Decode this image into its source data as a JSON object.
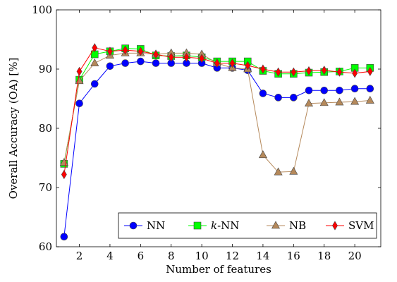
{
  "chart_data": {
    "type": "line",
    "title": "",
    "xlabel": "Number of features",
    "ylabel": "Overall Accuracy (OA) [%]",
    "xlim": [
      0.5,
      21.7
    ],
    "ylim": [
      60,
      100
    ],
    "x_ticks": [
      2,
      4,
      6,
      8,
      10,
      12,
      14,
      16,
      18,
      20
    ],
    "x_tick_labels": [
      "2",
      "4",
      "6",
      "8",
      "10",
      "12",
      "14",
      "16",
      "18",
      "20"
    ],
    "y_ticks": [
      60,
      70,
      80,
      90,
      100
    ],
    "y_tick_labels": [
      "60",
      "70",
      "80",
      "90",
      "100"
    ],
    "grid": false,
    "legend_position": "bottom-right",
    "x": [
      1,
      2,
      3,
      4,
      5,
      6,
      7,
      8,
      9,
      10,
      11,
      12,
      13,
      14,
      15,
      16,
      17,
      18,
      19,
      20,
      21
    ],
    "series": [
      {
        "name": "NN",
        "color": "#0000ff",
        "marker": "circle",
        "values": [
          61.7,
          84.2,
          87.5,
          90.5,
          91.0,
          91.3,
          91.0,
          91.0,
          91.0,
          91.0,
          90.2,
          90.2,
          89.8,
          85.9,
          85.2,
          85.2,
          86.4,
          86.4,
          86.4,
          86.7,
          86.7
        ]
      },
      {
        "name": "k-NN",
        "color": "#00ff00",
        "marker": "square",
        "values": [
          74.0,
          88.2,
          92.5,
          93.0,
          93.5,
          93.4,
          92.3,
          92.2,
          92.3,
          92.0,
          91.3,
          91.3,
          91.3,
          89.7,
          89.2,
          89.2,
          89.4,
          89.5,
          89.6,
          90.2,
          90.2
        ]
      },
      {
        "name": "NB",
        "color": "#b5895b",
        "marker": "triangle",
        "values": [
          74.2,
          88.0,
          91.0,
          92.3,
          92.7,
          92.7,
          92.5,
          92.7,
          92.7,
          92.5,
          91.0,
          90.2,
          90.0,
          75.5,
          72.6,
          72.7,
          84.2,
          84.3,
          84.4,
          84.5,
          84.7
        ]
      },
      {
        "name": "SVM",
        "color": "#ff0000",
        "marker": "diamond",
        "values": [
          72.2,
          89.6,
          93.6,
          93.0,
          93.2,
          93.0,
          92.5,
          92.0,
          92.0,
          91.8,
          91.0,
          91.0,
          90.6,
          90.0,
          89.5,
          89.5,
          89.7,
          89.8,
          89.5,
          89.3,
          89.6
        ]
      }
    ],
    "legend_labels": [
      {
        "prefix": "",
        "italic": "",
        "suffix": "NN"
      },
      {
        "prefix": "",
        "italic": "k",
        "suffix": "-NN"
      },
      {
        "prefix": "",
        "italic": "",
        "suffix": "NB"
      },
      {
        "prefix": "",
        "italic": "",
        "suffix": "SVM"
      }
    ]
  }
}
